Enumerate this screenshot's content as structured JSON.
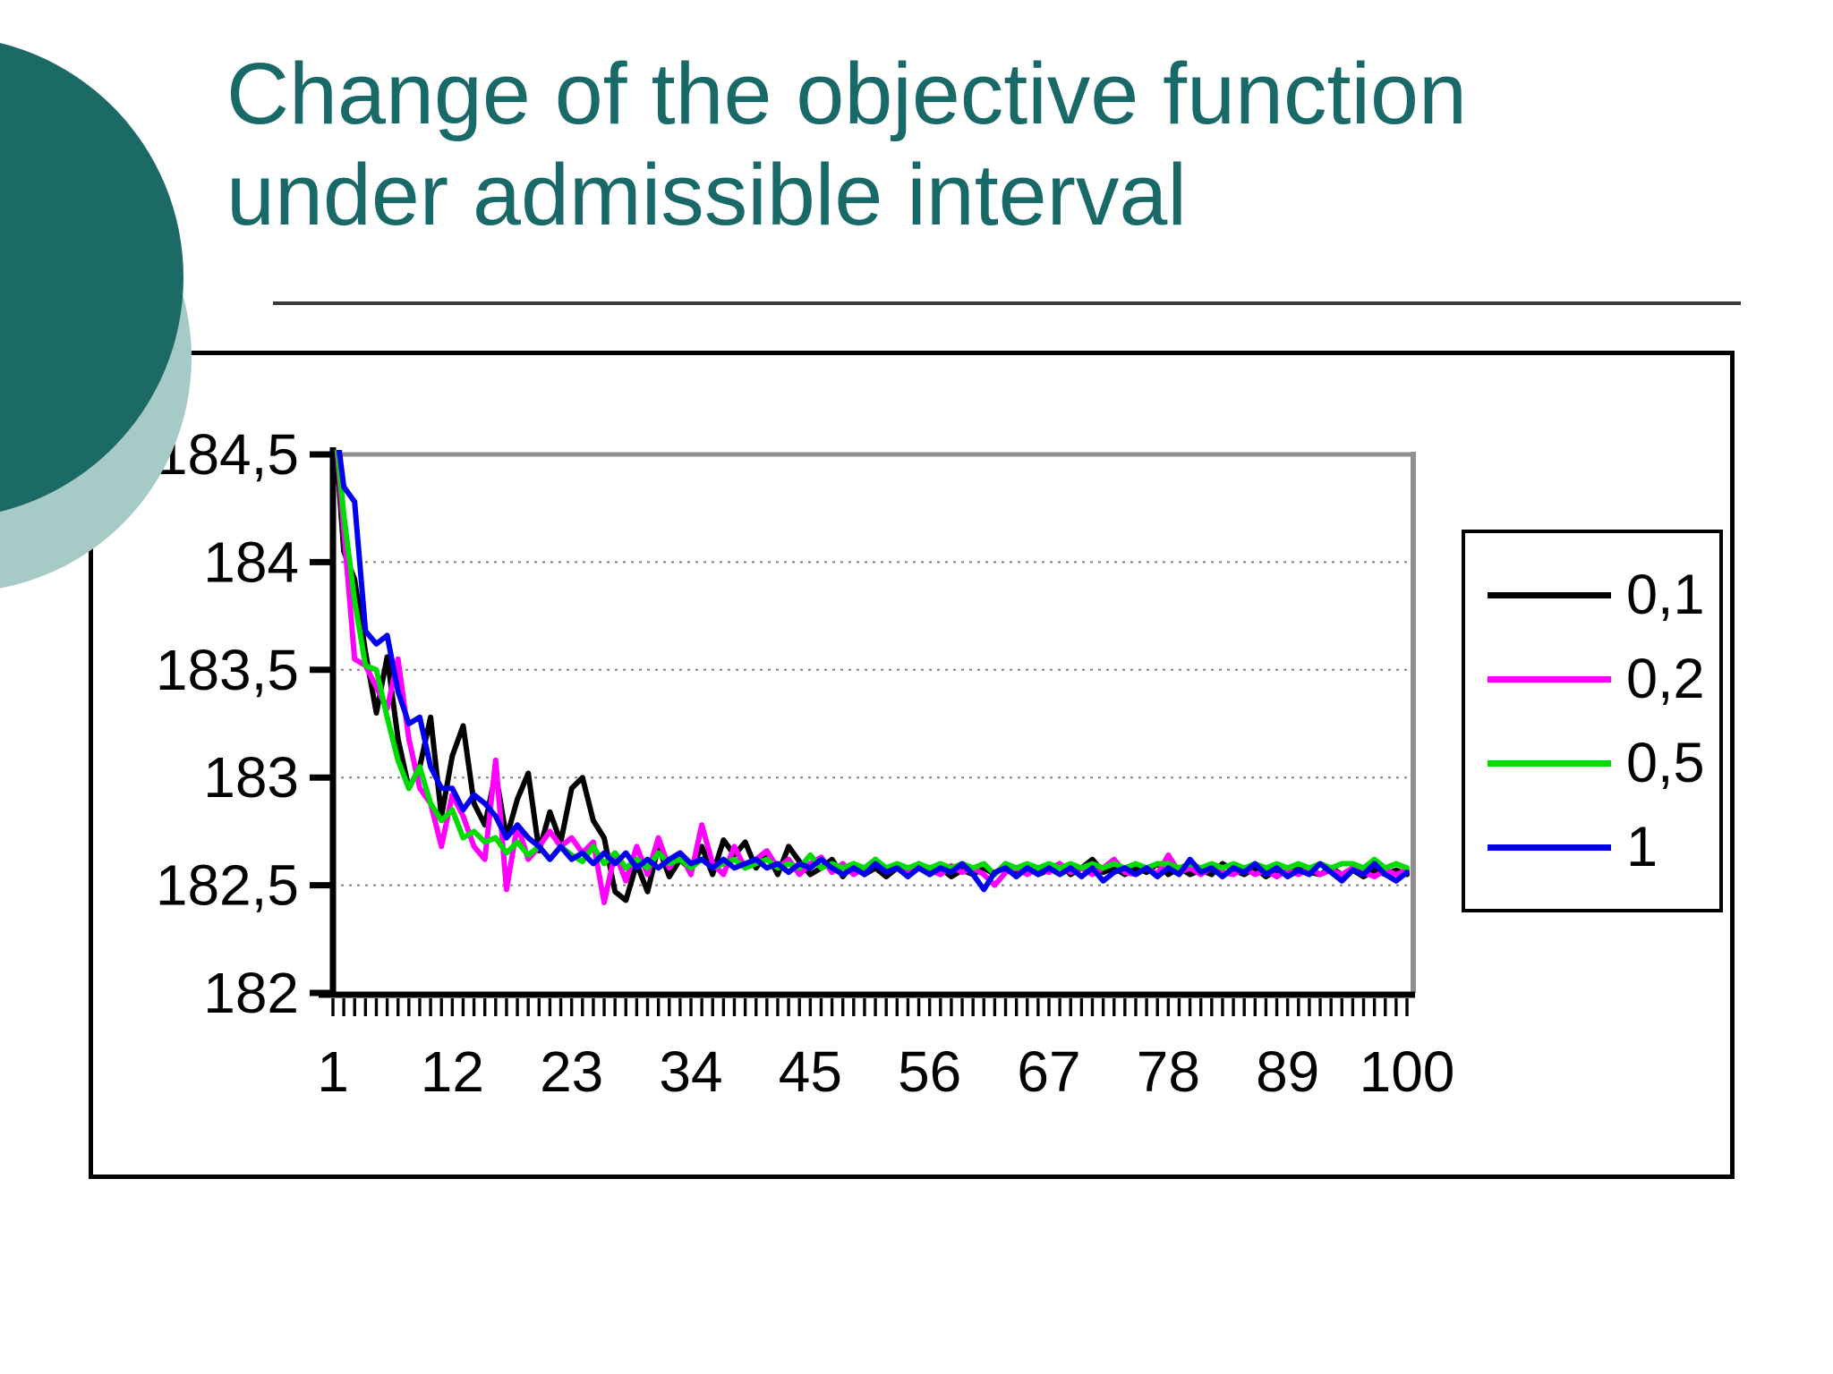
{
  "title": {
    "line1": "Change of the objective function",
    "line2": "under admissible interval",
    "color": "#186968"
  },
  "decor": {
    "dark_circle_color": "#1b6a66",
    "light_circle_color": "#a6cbc6"
  },
  "chart_data": {
    "type": "line",
    "title": "",
    "xlabel": "",
    "ylabel": "",
    "x_range": [
      1,
      100
    ],
    "ylim": [
      182,
      184.5
    ],
    "grid": "horizontal-dotted",
    "legend_position": "right",
    "plot_border_color": "#909090",
    "gridline_color": "#808080",
    "axis_color": "#000000",
    "x_ticks": [
      1,
      12,
      23,
      34,
      45,
      56,
      67,
      78,
      89,
      100
    ],
    "x_tick_labels": [
      "1",
      "12",
      "23",
      "34",
      "45",
      "56",
      "67",
      "78",
      "89",
      "100"
    ],
    "y_ticks": [
      {
        "label": "184,5",
        "value": 184.5
      },
      {
        "label": "184",
        "value": 184.0
      },
      {
        "label": "183,5",
        "value": 183.5
      },
      {
        "label": "183",
        "value": 183.0
      },
      {
        "label": "182,5",
        "value": 182.5
      },
      {
        "label": "182",
        "value": 182.0
      }
    ],
    "series": [
      {
        "name": "0,1",
        "color": "#000000",
        "values": [
          184.75,
          184.05,
          183.92,
          183.58,
          183.3,
          183.56,
          183.18,
          182.95,
          183.05,
          183.28,
          182.82,
          183.1,
          183.24,
          182.88,
          182.78,
          183.02,
          182.72,
          182.9,
          183.02,
          182.66,
          182.84,
          182.7,
          182.95,
          183.0,
          182.8,
          182.72,
          182.47,
          182.43,
          182.6,
          182.47,
          182.68,
          182.54,
          182.62,
          182.57,
          182.68,
          182.55,
          182.71,
          182.64,
          182.7,
          182.58,
          182.65,
          182.55,
          182.68,
          182.61,
          182.55,
          182.58,
          182.62,
          182.54,
          182.6,
          182.55,
          182.58,
          182.54,
          182.58,
          182.56,
          182.6,
          182.55,
          182.58,
          182.54,
          182.57,
          182.55,
          182.58,
          182.55,
          182.6,
          182.56,
          182.58,
          182.55,
          182.57,
          182.6,
          182.55,
          182.58,
          182.62,
          182.56,
          182.58,
          182.55,
          182.58,
          182.56,
          182.6,
          182.55,
          182.58,
          182.55,
          182.57,
          182.55,
          182.6,
          182.57,
          182.55,
          182.58,
          182.54,
          182.57,
          182.55,
          182.58,
          182.56,
          182.55,
          182.58,
          182.55,
          182.57,
          182.54,
          182.57,
          182.55,
          182.57,
          182.55
        ]
      },
      {
        "name": "0,2",
        "color": "#ff00ff",
        "values": [
          184.75,
          184.15,
          183.55,
          183.52,
          183.42,
          183.32,
          183.55,
          183.18,
          182.95,
          182.88,
          182.68,
          182.92,
          182.82,
          182.68,
          182.62,
          183.08,
          182.48,
          182.78,
          182.62,
          182.68,
          182.75,
          182.68,
          182.72,
          182.65,
          182.7,
          182.42,
          182.65,
          182.52,
          182.68,
          182.55,
          182.72,
          182.58,
          182.65,
          182.55,
          182.78,
          182.6,
          182.55,
          182.68,
          182.58,
          182.62,
          182.66,
          182.58,
          182.62,
          182.55,
          182.6,
          182.63,
          182.56,
          182.6,
          182.55,
          182.58,
          182.62,
          182.56,
          182.58,
          182.55,
          182.6,
          182.57,
          182.55,
          182.59,
          182.56,
          182.58,
          182.55,
          182.5,
          182.56,
          182.58,
          182.55,
          182.58,
          182.56,
          182.6,
          182.56,
          182.58,
          182.55,
          182.58,
          182.62,
          182.56,
          182.55,
          182.58,
          182.55,
          182.64,
          182.56,
          182.58,
          182.55,
          182.58,
          182.56,
          182.55,
          182.58,
          182.55,
          182.57,
          182.54,
          182.57,
          182.55,
          182.58,
          182.55,
          182.57,
          182.55,
          182.58,
          182.56,
          182.54,
          182.57,
          182.55,
          182.57
        ]
      },
      {
        "name": "0,5",
        "color": "#00dc00",
        "values": [
          184.75,
          184.22,
          183.82,
          183.52,
          183.5,
          183.28,
          183.08,
          182.95,
          183.05,
          182.88,
          182.8,
          182.85,
          182.72,
          182.75,
          182.7,
          182.72,
          182.65,
          182.7,
          182.64,
          182.68,
          182.62,
          182.68,
          182.64,
          182.61,
          182.68,
          182.6,
          182.65,
          182.58,
          182.62,
          182.58,
          182.65,
          182.6,
          182.62,
          182.58,
          182.62,
          182.58,
          182.6,
          182.62,
          182.58,
          182.6,
          182.62,
          182.58,
          182.6,
          182.58,
          182.64,
          182.58,
          182.6,
          182.58,
          182.6,
          182.58,
          182.62,
          182.58,
          182.6,
          182.58,
          182.6,
          182.58,
          182.6,
          182.58,
          182.6,
          182.58,
          182.6,
          182.55,
          182.6,
          182.58,
          182.6,
          182.58,
          182.6,
          182.58,
          182.6,
          182.58,
          182.6,
          182.58,
          182.6,
          182.58,
          182.6,
          182.58,
          182.6,
          182.6,
          182.58,
          182.6,
          182.58,
          182.6,
          182.58,
          182.6,
          182.58,
          182.6,
          182.58,
          182.6,
          182.58,
          182.6,
          182.58,
          182.6,
          182.58,
          182.6,
          182.6,
          182.58,
          182.62,
          182.58,
          182.6,
          182.58
        ]
      },
      {
        "name": "1",
        "color": "#0000ee",
        "values": [
          184.75,
          184.35,
          184.28,
          183.68,
          183.62,
          183.66,
          183.4,
          183.25,
          183.28,
          183.05,
          182.95,
          182.95,
          182.85,
          182.92,
          182.88,
          182.82,
          182.72,
          182.78,
          182.72,
          182.68,
          182.62,
          182.68,
          182.62,
          182.65,
          182.6,
          182.65,
          182.6,
          182.65,
          182.58,
          182.62,
          182.58,
          182.62,
          182.65,
          182.6,
          182.62,
          182.58,
          182.62,
          182.58,
          182.6,
          182.62,
          182.58,
          182.6,
          182.56,
          182.6,
          182.58,
          182.62,
          182.58,
          182.55,
          182.58,
          182.55,
          182.6,
          182.56,
          182.58,
          182.54,
          182.58,
          182.55,
          182.58,
          182.56,
          182.6,
          182.55,
          182.48,
          182.56,
          182.58,
          182.54,
          182.58,
          182.55,
          182.58,
          182.55,
          182.58,
          182.54,
          182.58,
          182.52,
          182.56,
          182.58,
          182.55,
          182.58,
          182.54,
          182.58,
          182.55,
          182.62,
          182.56,
          182.58,
          182.54,
          182.58,
          182.56,
          182.6,
          182.55,
          182.58,
          182.54,
          182.57,
          182.55,
          182.6,
          182.56,
          182.52,
          182.57,
          182.55,
          182.6,
          182.55,
          182.52,
          182.56
        ]
      }
    ]
  }
}
